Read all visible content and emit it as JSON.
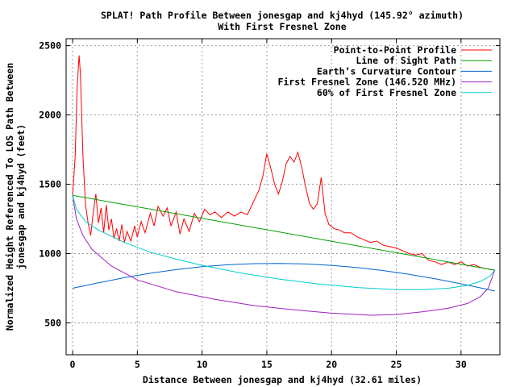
{
  "chart_data": {
    "type": "line",
    "title": "SPLAT! Path Profile Between jonesgap and kj4hyd (145.92° azimuth)",
    "subtitle": "With First Fresnel Zone",
    "xlabel": "Distance Between jonesgap and kj4hyd (32.61 miles)",
    "ylabel_line1": "Normalized Height Referenced To LOS Path Between",
    "ylabel_line2": "jonesgap and kj4hyd (feet)",
    "xlim": [
      -0.5,
      33
    ],
    "ylim": [
      270,
      2550
    ],
    "x_ticks": [
      0,
      5,
      10,
      15,
      20,
      25,
      30
    ],
    "y_ticks": [
      500,
      1000,
      1500,
      2000,
      2500
    ],
    "grid": true,
    "legend_position": "top-right",
    "series": [
      {
        "name": "Point-to-Point Profile",
        "color": "#ff0000",
        "points": [
          [
            0,
            1410
          ],
          [
            0.2,
            1700
          ],
          [
            0.35,
            2200
          ],
          [
            0.5,
            2430
          ],
          [
            0.6,
            2300
          ],
          [
            0.8,
            1700
          ],
          [
            1.0,
            1350
          ],
          [
            1.2,
            1220
          ],
          [
            1.4,
            1130
          ],
          [
            1.6,
            1300
          ],
          [
            1.8,
            1430
          ],
          [
            2.0,
            1220
          ],
          [
            2.2,
            1330
          ],
          [
            2.4,
            1150
          ],
          [
            2.6,
            1350
          ],
          [
            2.8,
            1170
          ],
          [
            3.0,
            1250
          ],
          [
            3.2,
            1110
          ],
          [
            3.4,
            1180
          ],
          [
            3.6,
            1090
          ],
          [
            3.8,
            1210
          ],
          [
            4.0,
            1080
          ],
          [
            4.2,
            1160
          ],
          [
            4.5,
            1090
          ],
          [
            4.8,
            1200
          ],
          [
            5.0,
            1120
          ],
          [
            5.3,
            1230
          ],
          [
            5.6,
            1150
          ],
          [
            6.0,
            1290
          ],
          [
            6.3,
            1200
          ],
          [
            6.6,
            1340
          ],
          [
            7.0,
            1270
          ],
          [
            7.3,
            1330
          ],
          [
            7.6,
            1200
          ],
          [
            8.0,
            1300
          ],
          [
            8.3,
            1140
          ],
          [
            8.6,
            1250
          ],
          [
            9.0,
            1160
          ],
          [
            9.4,
            1290
          ],
          [
            9.8,
            1230
          ],
          [
            10.2,
            1320
          ],
          [
            10.6,
            1280
          ],
          [
            11.0,
            1300
          ],
          [
            11.5,
            1260
          ],
          [
            12.0,
            1300
          ],
          [
            12.5,
            1270
          ],
          [
            13.0,
            1300
          ],
          [
            13.5,
            1280
          ],
          [
            14.0,
            1380
          ],
          [
            14.4,
            1460
          ],
          [
            14.7,
            1560
          ],
          [
            15.0,
            1720
          ],
          [
            15.3,
            1620
          ],
          [
            15.6,
            1500
          ],
          [
            15.9,
            1430
          ],
          [
            16.2,
            1520
          ],
          [
            16.5,
            1650
          ],
          [
            16.8,
            1700
          ],
          [
            17.1,
            1660
          ],
          [
            17.4,
            1730
          ],
          [
            17.7,
            1620
          ],
          [
            18.0,
            1480
          ],
          [
            18.3,
            1360
          ],
          [
            18.6,
            1320
          ],
          [
            18.9,
            1360
          ],
          [
            19.2,
            1550
          ],
          [
            19.5,
            1290
          ],
          [
            19.8,
            1210
          ],
          [
            20.2,
            1180
          ],
          [
            20.6,
            1170
          ],
          [
            21.0,
            1150
          ],
          [
            21.5,
            1150
          ],
          [
            22.0,
            1120
          ],
          [
            22.5,
            1100
          ],
          [
            23.0,
            1080
          ],
          [
            23.5,
            1090
          ],
          [
            24.0,
            1060
          ],
          [
            24.5,
            1050
          ],
          [
            25.0,
            1040
          ],
          [
            25.5,
            1020
          ],
          [
            26.0,
            1000
          ],
          [
            26.5,
            990
          ],
          [
            27.0,
            1000
          ],
          [
            27.5,
            950
          ],
          [
            28.0,
            940
          ],
          [
            28.5,
            920
          ],
          [
            29.0,
            940
          ],
          [
            29.5,
            920
          ],
          [
            30.0,
            940
          ],
          [
            30.5,
            910
          ],
          [
            31.0,
            920
          ],
          [
            31.5,
            900
          ],
          [
            32.0,
            890
          ],
          [
            32.61,
            880
          ]
        ]
      },
      {
        "name": "Line of Sight Path",
        "color": "#00a000",
        "points": [
          [
            0,
            1420
          ],
          [
            32.61,
            880
          ]
        ]
      },
      {
        "name": "Earth’s Curvature Contour",
        "color": "#0066cc",
        "points": [
          [
            0,
            750
          ],
          [
            2,
            789
          ],
          [
            4,
            826
          ],
          [
            6,
            858
          ],
          [
            8,
            884
          ],
          [
            10,
            905
          ],
          [
            12,
            919
          ],
          [
            14,
            927
          ],
          [
            16,
            929
          ],
          [
            18,
            925
          ],
          [
            20,
            915
          ],
          [
            22,
            899
          ],
          [
            24,
            877
          ],
          [
            26,
            850
          ],
          [
            28,
            818
          ],
          [
            30,
            782
          ],
          [
            32,
            742
          ],
          [
            32.61,
            730
          ]
        ]
      },
      {
        "name": "First Fresnel Zone (146.520 MHz)",
        "color": "#a020c0",
        "points": [
          [
            0,
            1420
          ],
          [
            0.3,
            1250
          ],
          [
            0.8,
            1130
          ],
          [
            1.5,
            1030
          ],
          [
            3,
            910
          ],
          [
            5,
            810
          ],
          [
            8,
            725
          ],
          [
            11,
            670
          ],
          [
            14,
            625
          ],
          [
            17,
            595
          ],
          [
            20,
            570
          ],
          [
            23,
            555
          ],
          [
            25,
            560
          ],
          [
            27,
            580
          ],
          [
            29,
            605
          ],
          [
            30.5,
            640
          ],
          [
            31.5,
            690
          ],
          [
            32.1,
            750
          ],
          [
            32.61,
            880
          ]
        ]
      },
      {
        "name": "60% of First Fresnel Zone",
        "color": "#00cccc",
        "points": [
          [
            0,
            1420
          ],
          [
            0.3,
            1320
          ],
          [
            1,
            1230
          ],
          [
            2,
            1170
          ],
          [
            4,
            1080
          ],
          [
            6,
            1010
          ],
          [
            8,
            960
          ],
          [
            10,
            915
          ],
          [
            13,
            860
          ],
          [
            16,
            815
          ],
          [
            19,
            780
          ],
          [
            22,
            755
          ],
          [
            25,
            740
          ],
          [
            27,
            740
          ],
          [
            29,
            750
          ],
          [
            30.5,
            770
          ],
          [
            31.5,
            800
          ],
          [
            32.2,
            835
          ],
          [
            32.61,
            880
          ]
        ]
      }
    ]
  }
}
